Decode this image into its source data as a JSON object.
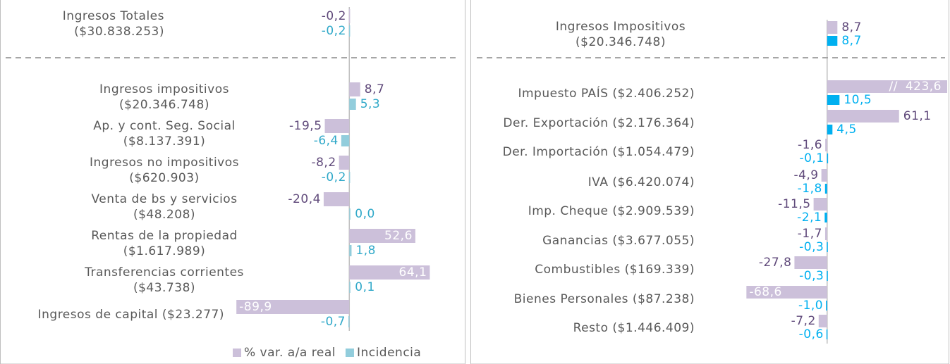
{
  "chart_data": [
    {
      "type": "bar",
      "orientation": "horizontal",
      "categories": [
        [
          "Ingresos Totales",
          "($30.838.253)"
        ],
        [
          "Ingresos impositivos",
          "($20.346.748)"
        ],
        [
          "Ap. y cont. Seg. Social",
          "($8.137.391)"
        ],
        [
          "Ingresos no impositivos",
          "($620.903)"
        ],
        [
          "Venta de bs y servicios",
          "($48.208)"
        ],
        [
          "Rentas de la propiedad",
          "($1.617.989)"
        ],
        [
          "Transferencias corrientes",
          "($43.738)"
        ],
        [
          "Ingresos de capital ($23.277)"
        ]
      ],
      "separator_after": 0,
      "series": [
        {
          "name": "% var. a/a real",
          "color": "#ccc0da",
          "label_color": "#604a7b",
          "values": [
            -0.2,
            8.7,
            -19.5,
            -8.2,
            -20.4,
            52.6,
            64.1,
            -89.9
          ],
          "value_labels": [
            "-0,2",
            "8,7",
            "-19,5",
            "-8,2",
            "-20,4",
            "52,6",
            "64,1",
            "-89,9"
          ]
        },
        {
          "name": "Incidencia",
          "color": "#92cddc",
          "label_color": "#31a9c9",
          "values": [
            -0.2,
            5.3,
            -6.4,
            -0.2,
            0.0,
            1.8,
            0.1,
            -0.7
          ],
          "value_labels": [
            "-0,2",
            "5,3",
            "-6,4",
            "-0,2",
            "0,0",
            "1,8",
            "0,1",
            "-0,7"
          ]
        }
      ],
      "xlim": [
        -90,
        65
      ],
      "legend": "bottom"
    },
    {
      "type": "bar",
      "orientation": "horizontal",
      "categories": [
        [
          "Ingresos Impositivos",
          "($20.346.748)"
        ],
        [
          "Impuesto PAÍS ($2.406.252)"
        ],
        [
          "Der. Exportación ($2.176.364)"
        ],
        [
          "Der. Importación ($1.054.479)"
        ],
        [
          "IVA ($6.420.074)"
        ],
        [
          "Imp. Cheque ($2.909.539)"
        ],
        [
          "Ganancias ($3.677.055)"
        ],
        [
          "Combustibles ($169.339)"
        ],
        [
          "Bienes Personales ($87.238)"
        ],
        [
          "Resto ($1.446.409)"
        ]
      ],
      "separator_after": 0,
      "break_label": "//",
      "series": [
        {
          "color": "#ccc0da",
          "label_color": "#604a7b",
          "values": [
            8.7,
            423.6,
            61.1,
            -1.6,
            -4.9,
            -11.5,
            -1.7,
            -27.8,
            -68.6,
            -7.2
          ],
          "value_labels": [
            "8,7",
            "423,6",
            "61,1",
            "-1,6",
            "-4,9",
            "-11,5",
            "-1,7",
            "-27,8",
            "-68,6",
            "-7,2"
          ]
        },
        {
          "color": "#00b0f0",
          "label_color": "#00b0f0",
          "values": [
            8.7,
            10.5,
            4.5,
            -0.1,
            -1.8,
            -2.1,
            -0.3,
            -0.3,
            -1.0,
            -0.6
          ],
          "value_labels": [
            "8,7",
            "10,5",
            "4,5",
            "-0,1",
            "-1,8",
            "-2,1",
            "-0,3",
            "-0,3",
            "-1,0",
            "-0,6"
          ]
        }
      ],
      "xlim": [
        -70,
        102
      ]
    }
  ]
}
